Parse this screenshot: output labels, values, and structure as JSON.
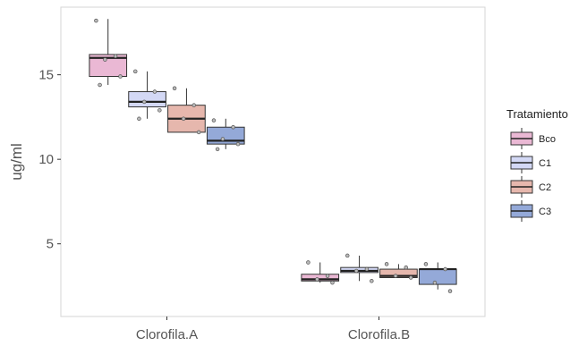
{
  "chart_data": {
    "type": "boxplot",
    "title": "",
    "xlabel": "",
    "ylabel": "ug/ml",
    "ylim": [
      0.7,
      19.0
    ],
    "yticks": [
      5,
      10,
      15
    ],
    "categories": [
      "Clorofila.A",
      "Clorofila.B"
    ],
    "legend": {
      "title": "Tratamiento",
      "placement": "right"
    },
    "grid": false,
    "series": [
      {
        "name": "Bco",
        "color": "#eab8d4",
        "boxes": [
          {
            "min": 14.4,
            "q1": 14.9,
            "median": 16.0,
            "q3": 16.2,
            "max": 18.3,
            "points": [
              18.2,
              16.1,
              15.9,
              14.9,
              14.4
            ]
          },
          {
            "min": 2.7,
            "q1": 2.8,
            "median": 2.9,
            "q3": 3.2,
            "max": 3.9,
            "points": [
              3.9,
              3.1,
              2.9,
              2.7
            ]
          }
        ]
      },
      {
        "name": "C1",
        "color": "#d3d8f5",
        "boxes": [
          {
            "min": 12.4,
            "q1": 13.1,
            "median": 13.4,
            "q3": 14.0,
            "max": 15.2,
            "points": [
              15.2,
              14.0,
              13.4,
              12.9,
              12.4
            ]
          },
          {
            "min": 2.8,
            "q1": 3.3,
            "median": 3.4,
            "q3": 3.6,
            "max": 4.3,
            "points": [
              4.3,
              3.5,
              3.4,
              2.8
            ]
          }
        ]
      },
      {
        "name": "C2",
        "color": "#e6b7ad",
        "boxes": [
          {
            "min": 11.6,
            "q1": 11.6,
            "median": 12.4,
            "q3": 13.2,
            "max": 14.2,
            "points": [
              14.2,
              13.2,
              12.4,
              11.6
            ]
          },
          {
            "min": 3.0,
            "q1": 3.0,
            "median": 3.1,
            "q3": 3.5,
            "max": 3.8,
            "points": [
              3.8,
              3.6,
              3.1,
              3.0
            ]
          }
        ]
      },
      {
        "name": "C3",
        "color": "#94a9d8",
        "boxes": [
          {
            "min": 10.6,
            "q1": 10.9,
            "median": 11.1,
            "q3": 11.9,
            "max": 12.4,
            "points": [
              12.3,
              11.9,
              11.2,
              10.9,
              10.6
            ]
          },
          {
            "min": 2.3,
            "q1": 2.6,
            "median": 3.5,
            "q3": 3.5,
            "max": 3.9,
            "points": [
              3.8,
              3.5,
              2.7,
              2.2
            ]
          }
        ]
      }
    ]
  }
}
